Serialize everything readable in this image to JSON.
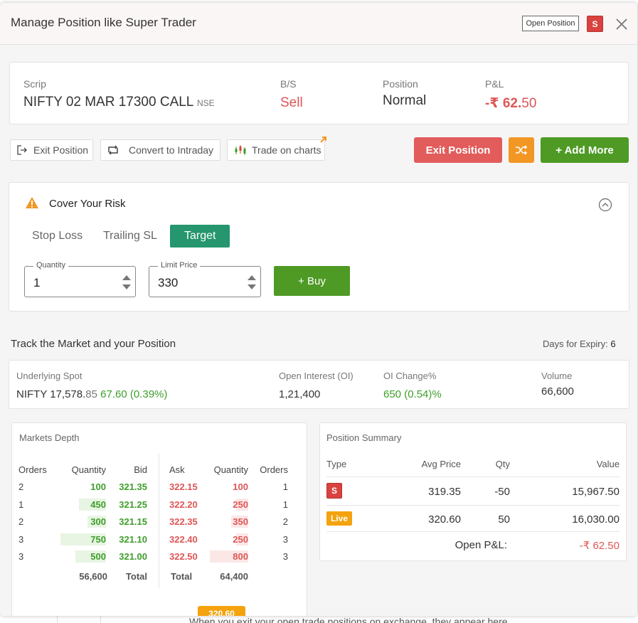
{
  "background": {
    "bottom_text": "When you exit your open trade positions on exchange, they appear here",
    "depth_tab_text": "320.60"
  },
  "modal": {
    "title": "Manage Position like Super Trader",
    "open_position_label": "Open Position",
    "side_badge": "S"
  },
  "scrip_card": {
    "scrip_label": "Scrip",
    "scrip_name": "NIFTY 02 MAR 17300 CALL",
    "exchange": "NSE",
    "bs_label": "B/S",
    "bs_value": "Sell",
    "position_label": "Position",
    "position_value": "Normal",
    "pnl_label": "P&L",
    "pnl_main": "-₹ 62.",
    "pnl_decimal": "50"
  },
  "actions": {
    "exit_position_chip": "Exit Position",
    "convert_chip": "Convert to Intraday",
    "charts_chip": "Trade on charts",
    "exit_button": "Exit Position",
    "add_more_button": "+ Add More"
  },
  "cover_risk": {
    "title": "Cover Your Risk",
    "tabs": [
      "Stop Loss",
      "Trailing SL",
      "Target"
    ],
    "active_tab": "Target",
    "quantity_label": "Quantity",
    "quantity_value": "1",
    "limit_price_label": "Limit Price",
    "limit_price_value": "330",
    "buy_button": "+ Buy"
  },
  "track": {
    "title": "Track the Market and your Position",
    "expiry_label": "Days for Expiry:",
    "expiry_value": "6",
    "underlying_label": "Underlying Spot",
    "underlying_name": "NIFTY",
    "underlying_price_main": "17,578.",
    "underlying_price_dec": "85",
    "underlying_change": "67.60 (0.39%)",
    "oi_label": "Open Interest (OI)",
    "oi_value": "1,21,400",
    "oi_change_label": "OI Change%",
    "oi_change_value": "650 (0.54)%",
    "volume_label": "Volume",
    "volume_value": "66,600"
  },
  "market_depth": {
    "title": "Markets Depth",
    "headers": [
      "Orders",
      "Quantity",
      "Bid",
      "Ask",
      "Quantity",
      "Orders"
    ],
    "rows": [
      {
        "bid_orders": "2",
        "bid_qty": "100",
        "bid": "321.35",
        "ask": "322.15",
        "ask_qty": "100",
        "ask_orders": "1",
        "bid_fill": 0.0,
        "ask_fill": 0.0
      },
      {
        "bid_orders": "1",
        "bid_qty": "450",
        "bid": "321.25",
        "ask": "322.20",
        "ask_qty": "250",
        "ask_orders": "1",
        "bid_fill": 0.6,
        "ask_fill": 0.31
      },
      {
        "bid_orders": "2",
        "bid_qty": "300",
        "bid": "321.15",
        "ask": "322.35",
        "ask_qty": "350",
        "ask_orders": "2",
        "bid_fill": 0.4,
        "ask_fill": 0.44
      },
      {
        "bid_orders": "3",
        "bid_qty": "750",
        "bid": "321.10",
        "ask": "322.40",
        "ask_qty": "250",
        "ask_orders": "3",
        "bid_fill": 1.0,
        "ask_fill": 0.31
      },
      {
        "bid_orders": "3",
        "bid_qty": "500",
        "bid": "321.00",
        "ask": "322.50",
        "ask_qty": "800",
        "ask_orders": "3",
        "bid_fill": 0.67,
        "ask_fill": 1.0
      }
    ],
    "bid_total_qty": "56,600",
    "total_label": "Total",
    "ask_total_qty": "64,400"
  },
  "position_summary": {
    "title": "Position Summary",
    "headers": [
      "Type",
      "Avg Price",
      "Qty",
      "Value"
    ],
    "rows": [
      {
        "type": "S",
        "avg_price": "319.35",
        "qty": "-50",
        "value": "15,967.50"
      },
      {
        "type": "Live",
        "avg_price": "320.60",
        "qty": "50",
        "value": "16,030.00"
      }
    ],
    "open_pnl_label": "Open P&L:",
    "open_pnl_value": "-₹ 62.50"
  },
  "colors": {
    "sell_red": "#de5656",
    "buy_green": "#4e9a25",
    "target_teal": "#25966e",
    "warning_orange": "#f29724"
  }
}
